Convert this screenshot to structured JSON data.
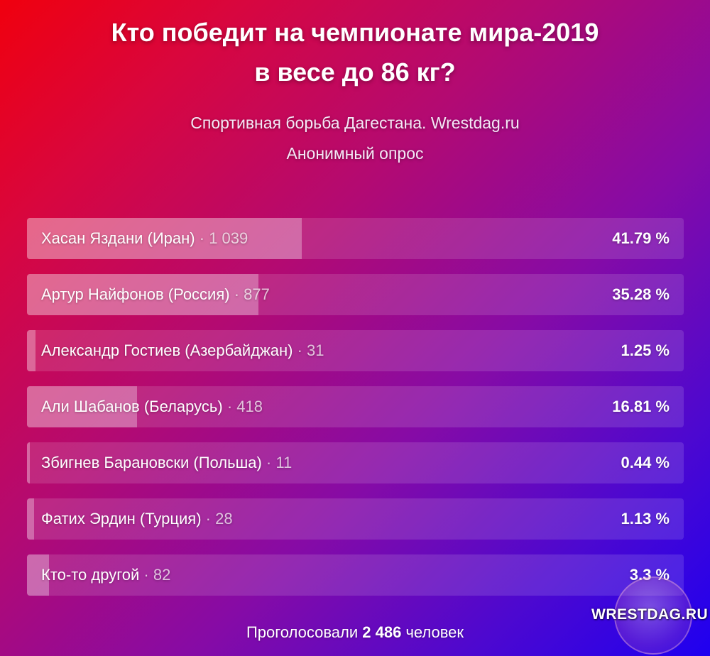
{
  "poll": {
    "title_line1": "Кто победит на чемпионате мира-2019",
    "title_line2": "в весе до 86 кг?",
    "subtitle_line1": "Спортивная борьба Дагестана. Wrestdag.ru",
    "subtitle_line2": "Анонимный опрос",
    "separator": "·",
    "options": [
      {
        "label": "Хасан Яздани (Иран)",
        "count": "1 039",
        "percent": "41.79 %",
        "share": 41.79
      },
      {
        "label": "Артур Найфонов (Россия)",
        "count": "877",
        "percent": "35.28 %",
        "share": 35.28
      },
      {
        "label": "Александр Гостиев (Азербайджан)",
        "count": "31",
        "percent": "1.25 %",
        "share": 1.25
      },
      {
        "label": "Али Шабанов (Беларусь)",
        "count": "418",
        "percent": "16.81 %",
        "share": 16.81
      },
      {
        "label": "Збигнев Барановски (Польша)",
        "count": "11",
        "percent": "0.44 %",
        "share": 0.44
      },
      {
        "label": "Фатих Эрдин (Турция)",
        "count": "28",
        "percent": "1.13 %",
        "share": 1.13
      },
      {
        "label": "Кто-то другой",
        "count": "82",
        "percent": "3.3 %",
        "share": 3.3
      }
    ],
    "total_prefix": "Проголосовали",
    "total_count": "2 486",
    "total_suffix": "человек"
  },
  "watermark": {
    "text": "WRESTDAG.RU"
  }
}
